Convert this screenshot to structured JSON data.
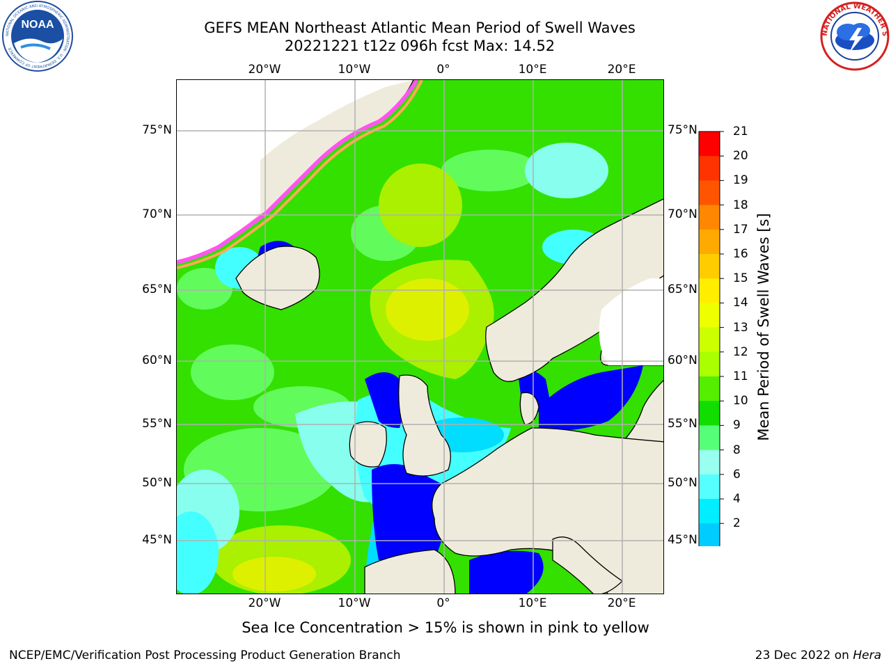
{
  "title": {
    "line1": "GEFS MEAN Northeast Atlantic Mean Period of Swell Waves",
    "line2": "20221221 t12z 096h fcst   Max: 14.52"
  },
  "logos": {
    "left": {
      "icon": "noaa-logo",
      "text": "NOAA",
      "ring_text": "NATIONAL OCEANIC AND ATMOSPHERIC ADMINISTRATION · U.S. DEPARTMENT OF COMMERCE"
    },
    "right": {
      "icon": "nws-logo",
      "ring_text": "NATIONAL WEATHER SERVICE"
    }
  },
  "map": {
    "projection": "lat-lon",
    "lon_ticks": [
      "20°W",
      "10°W",
      "0°",
      "10°E",
      "20°E"
    ],
    "lat_ticks": [
      "75°N",
      "70°N",
      "65°N",
      "60°N",
      "55°N",
      "50°N",
      "45°N"
    ],
    "grid": true,
    "colors": {
      "land": "#efebdc",
      "coast": "#000000",
      "grid": "#b0b0b0",
      "ice_edge": [
        "#ff55ee",
        "#ffaa55",
        "#ffee55"
      ]
    }
  },
  "colorbar": {
    "label": "Mean Period of Swell Waves [s]",
    "ticks": [
      "21",
      "20",
      "19",
      "18",
      "17",
      "16",
      "15",
      "14",
      "13",
      "12",
      "11",
      "10",
      "9",
      "8",
      "6",
      "4",
      "2"
    ],
    "colors": [
      "#ff0000",
      "#ff3300",
      "#ff5500",
      "#ff8800",
      "#ffaa00",
      "#ffcc00",
      "#ffee00",
      "#eeff00",
      "#ccff00",
      "#aaff00",
      "#55ee00",
      "#11dd00",
      "#55ff77",
      "#99ffee",
      "#55ffff",
      "#00eeff",
      "#00ccff",
      "#0077ff"
    ],
    "under_color": "#0000ff",
    "extend": "min"
  },
  "caption": "Sea Ice Concentration > 15% is shown in pink to yellow",
  "footer": {
    "left": "NCEP/EMC/Verification Post Processing Product Generation Branch",
    "right_prefix": "23 Dec 2022 on ",
    "right_machine": "Hera"
  }
}
